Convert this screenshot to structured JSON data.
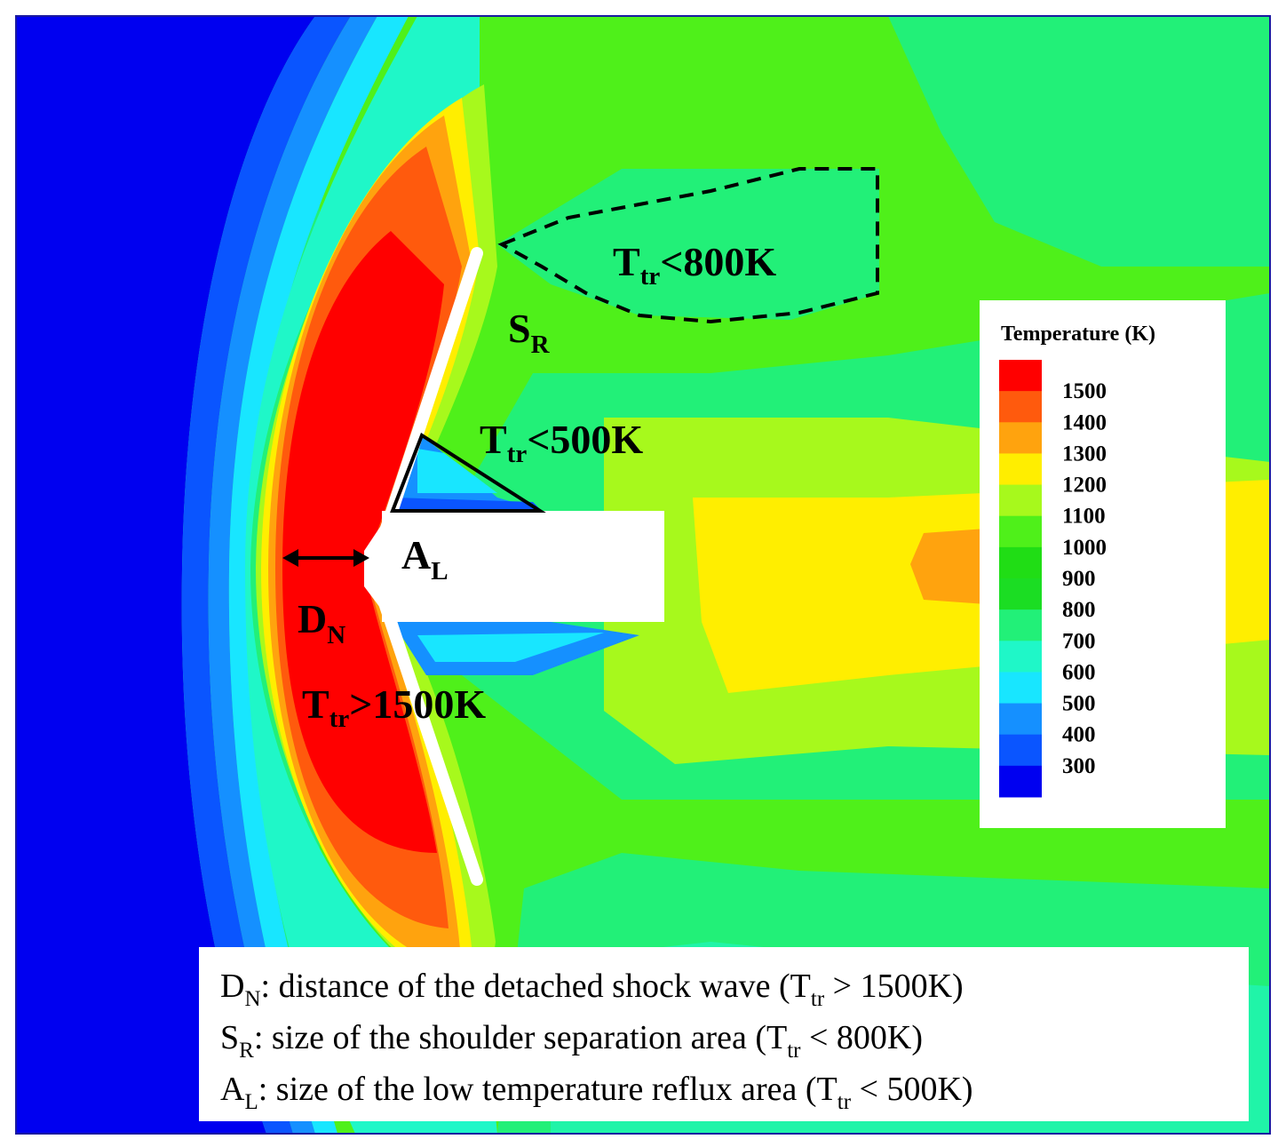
{
  "legend": {
    "title": "Temperature (K)",
    "levels": [
      "1500",
      "1400",
      "1300",
      "1200",
      "1100",
      "1000",
      "900",
      "800",
      "700",
      "600",
      "500",
      "400",
      "300"
    ],
    "colors": [
      "#ff0000",
      "#ff5a0d",
      "#ffa30e",
      "#ffee00",
      "#a7f91c",
      "#4ff01a",
      "#20dd15",
      "#1bdd23",
      "#22f078",
      "#1ff7c8",
      "#18e6ff",
      "#1590ff",
      "#0a55ff",
      "#0000f0"
    ]
  },
  "labels": {
    "sr": {
      "main": "S",
      "sub": "R"
    },
    "al": {
      "main": "A",
      "sub": "L"
    },
    "dn": {
      "main": "D",
      "sub": "N"
    },
    "t800": {
      "main": "T",
      "sub": "tr",
      "rest": "<800K"
    },
    "t500": {
      "main": "T",
      "sub": "tr",
      "rest": "<500K"
    },
    "t1500": {
      "main": "T",
      "sub": "tr",
      "rest": ">1500K"
    }
  },
  "notes": [
    {
      "sym": "D",
      "sub": "N",
      "colon": ":",
      "text": "distance of the detached shock wave (T",
      "sub2": "tr",
      "tail": " > 1500K)"
    },
    {
      "sym": "S",
      "sub": "R",
      "colon": ":",
      "text": "size of the shoulder separation area (T",
      "sub2": "tr",
      "tail": " < 800K)"
    },
    {
      "sym": "A",
      "sub": "L",
      "colon": ":",
      "text": "size of the low temperature reflux area (T",
      "sub2": "tr",
      "tail": " < 500K)"
    }
  ]
}
